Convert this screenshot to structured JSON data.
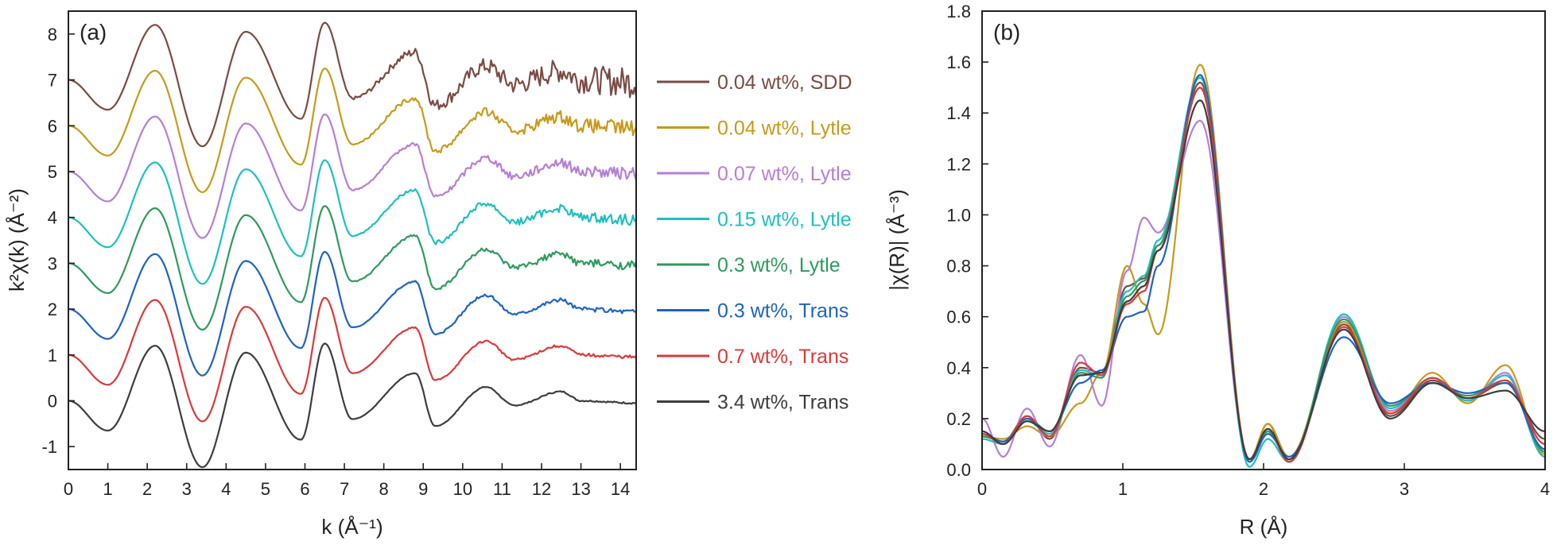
{
  "chart_data": [
    {
      "type": "line",
      "panel_label": "(a)",
      "title": "",
      "xlabel": "k (Å⁻¹)",
      "ylabel": "k²χ(k) (Å⁻²)",
      "xlim": [
        0,
        14.4
      ],
      "ylim": [
        -1.5,
        8.5
      ],
      "xticks": [
        0,
        1,
        2,
        3,
        4,
        5,
        6,
        7,
        8,
        9,
        10,
        11,
        12,
        13,
        14
      ],
      "yticks": [
        -1,
        0,
        1,
        2,
        3,
        4,
        5,
        6,
        7,
        8
      ],
      "legend_position": "right",
      "series_offset_step": 1,
      "series": [
        {
          "name": "0.04 wt%, SDD",
          "color": "#7b4a44",
          "offset": 7,
          "noise": 0.35,
          "x": [
            0,
            1,
            2.2,
            3.4,
            4.5,
            5.9,
            6.5,
            7.2,
            8.8,
            9.3,
            10.6,
            11.3,
            12.5,
            13,
            14.4
          ],
          "y": [
            0,
            -0.65,
            1.2,
            -1.45,
            1.05,
            -0.85,
            1.25,
            -0.4,
            0.6,
            -0.55,
            0.3,
            -0.1,
            0.2,
            0,
            -0.05
          ]
        },
        {
          "name": "0.04 wt%, Lytle",
          "color": "#c79a1b",
          "offset": 6,
          "noise": 0.18,
          "x": [
            0,
            1,
            2.2,
            3.4,
            4.5,
            5.9,
            6.5,
            7.2,
            8.8,
            9.3,
            10.6,
            11.3,
            12.5,
            13,
            14.4
          ],
          "y": [
            0,
            -0.65,
            1.2,
            -1.45,
            1.05,
            -0.85,
            1.25,
            -0.4,
            0.6,
            -0.55,
            0.3,
            -0.1,
            0.2,
            0,
            -0.05
          ]
        },
        {
          "name": "0.07 wt%, Lytle",
          "color": "#b57fd6",
          "offset": 5,
          "noise": 0.14,
          "x": [
            0,
            1,
            2.2,
            3.4,
            4.5,
            5.9,
            6.5,
            7.2,
            8.8,
            9.3,
            10.6,
            11.3,
            12.5,
            13,
            14.4
          ],
          "y": [
            0,
            -0.65,
            1.2,
            -1.45,
            1.05,
            -0.85,
            1.25,
            -0.4,
            0.6,
            -0.55,
            0.3,
            -0.1,
            0.2,
            0,
            -0.05
          ]
        },
        {
          "name": "0.15 wt%, Lytle",
          "color": "#1ebfc0",
          "offset": 4,
          "noise": 0.12,
          "x": [
            0,
            1,
            2.2,
            3.4,
            4.5,
            5.9,
            6.5,
            7.2,
            8.8,
            9.3,
            10.6,
            11.3,
            12.5,
            13,
            14.4
          ],
          "y": [
            0,
            -0.65,
            1.2,
            -1.45,
            1.05,
            -0.85,
            1.25,
            -0.4,
            0.6,
            -0.55,
            0.3,
            -0.1,
            0.2,
            0,
            -0.05
          ]
        },
        {
          "name": "0.3 wt%, Lytle",
          "color": "#2e9a5e",
          "offset": 3,
          "noise": 0.1,
          "x": [
            0,
            1,
            2.2,
            3.4,
            4.5,
            5.9,
            6.5,
            7.2,
            8.8,
            9.3,
            10.6,
            11.3,
            12.5,
            13,
            14.4
          ],
          "y": [
            0,
            -0.65,
            1.2,
            -1.45,
            1.05,
            -0.85,
            1.25,
            -0.4,
            0.6,
            -0.55,
            0.3,
            -0.1,
            0.2,
            0,
            -0.05
          ]
        },
        {
          "name": "0.3 wt%, Trans",
          "color": "#1e63c0",
          "offset": 2,
          "noise": 0.06,
          "x": [
            0,
            1,
            2.2,
            3.4,
            4.5,
            5.9,
            6.5,
            7.2,
            8.8,
            9.3,
            10.6,
            11.3,
            12.5,
            13,
            14.4
          ],
          "y": [
            0,
            -0.65,
            1.2,
            -1.45,
            1.05,
            -0.85,
            1.25,
            -0.4,
            0.6,
            -0.55,
            0.3,
            -0.1,
            0.2,
            0,
            -0.05
          ]
        },
        {
          "name": "0.7 wt%, Trans",
          "color": "#d93a3a",
          "offset": 1,
          "noise": 0.04,
          "x": [
            0,
            1,
            2.2,
            3.4,
            4.5,
            5.9,
            6.5,
            7.2,
            8.8,
            9.3,
            10.6,
            11.3,
            12.5,
            13,
            14.4
          ],
          "y": [
            0,
            -0.65,
            1.2,
            -1.45,
            1.05,
            -0.85,
            1.25,
            -0.4,
            0.6,
            -0.55,
            0.3,
            -0.1,
            0.2,
            0,
            -0.05
          ]
        },
        {
          "name": "3.4 wt%, Trans",
          "color": "#3d3d3d",
          "offset": 0,
          "noise": 0.02,
          "x": [
            0,
            1,
            2.2,
            3.4,
            4.5,
            5.9,
            6.5,
            7.2,
            8.8,
            9.3,
            10.6,
            11.3,
            12.5,
            13,
            14.4
          ],
          "y": [
            0,
            -0.65,
            1.2,
            -1.45,
            1.05,
            -0.85,
            1.25,
            -0.4,
            0.6,
            -0.55,
            0.3,
            -0.1,
            0.2,
            0,
            -0.05
          ]
        }
      ]
    },
    {
      "type": "line",
      "panel_label": "(b)",
      "title": "",
      "xlabel": "R (Å)",
      "ylabel": "|χ(R)| (Å⁻³)",
      "xlim": [
        0,
        4
      ],
      "ylim": [
        0,
        1.8
      ],
      "xticks": [
        0,
        1,
        2,
        3,
        4
      ],
      "yticks": [
        0.0,
        0.2,
        0.4,
        0.6,
        0.8,
        1.0,
        1.2,
        1.4,
        1.6,
        1.8
      ],
      "x": [
        0,
        0.15,
        0.32,
        0.48,
        0.7,
        0.85,
        1.03,
        1.15,
        1.25,
        1.55,
        1.9,
        2.03,
        2.18,
        2.57,
        2.9,
        3.2,
        3.45,
        3.72,
        4.0
      ],
      "series": [
        {
          "name": "0.04 wt%, SDD",
          "color": "#7b4a44",
          "y": [
            0.13,
            0.11,
            0.21,
            0.12,
            0.4,
            0.38,
            0.72,
            0.75,
            0.88,
            1.52,
            0.04,
            0.18,
            0.03,
            0.57,
            0.21,
            0.35,
            0.28,
            0.34,
            0.12
          ]
        },
        {
          "name": "0.04 wt%, Lytle",
          "color": "#c79a1b",
          "y": [
            0.13,
            0.12,
            0.17,
            0.13,
            0.26,
            0.38,
            0.8,
            0.65,
            0.53,
            1.59,
            0.04,
            0.18,
            0.05,
            0.58,
            0.22,
            0.38,
            0.26,
            0.41,
            0.06
          ]
        },
        {
          "name": "0.07 wt%, Lytle",
          "color": "#b57fd6",
          "y": [
            0.2,
            0.05,
            0.24,
            0.09,
            0.45,
            0.25,
            0.78,
            0.99,
            0.93,
            1.37,
            0.03,
            0.15,
            0.03,
            0.6,
            0.23,
            0.36,
            0.27,
            0.38,
            0.05
          ]
        },
        {
          "name": "0.15 wt%, Lytle",
          "color": "#1ebfc0",
          "y": [
            0.12,
            0.1,
            0.19,
            0.14,
            0.39,
            0.37,
            0.7,
            0.76,
            0.9,
            1.54,
            0.01,
            0.12,
            0.03,
            0.61,
            0.24,
            0.36,
            0.27,
            0.37,
            0.05
          ]
        },
        {
          "name": "0.3 wt%, Lytle",
          "color": "#2e9a5e",
          "y": [
            0.13,
            0.11,
            0.2,
            0.13,
            0.38,
            0.36,
            0.68,
            0.74,
            0.88,
            1.5,
            0.03,
            0.15,
            0.04,
            0.59,
            0.25,
            0.34,
            0.29,
            0.35,
            0.07
          ]
        },
        {
          "name": "0.3 wt%, Trans",
          "color": "#1e63c0",
          "y": [
            0.14,
            0.11,
            0.2,
            0.15,
            0.34,
            0.39,
            0.6,
            0.62,
            0.8,
            1.55,
            0.03,
            0.14,
            0.05,
            0.52,
            0.26,
            0.34,
            0.3,
            0.34,
            0.08
          ]
        },
        {
          "name": "0.7 wt%, Trans",
          "color": "#d93a3a",
          "y": [
            0.14,
            0.1,
            0.21,
            0.13,
            0.42,
            0.37,
            0.65,
            0.7,
            0.86,
            1.5,
            0.04,
            0.16,
            0.03,
            0.56,
            0.22,
            0.36,
            0.28,
            0.35,
            0.1
          ]
        },
        {
          "name": "3.4 wt%, Trans",
          "color": "#3d3d3d",
          "y": [
            0.15,
            0.1,
            0.19,
            0.15,
            0.37,
            0.38,
            0.66,
            0.72,
            0.86,
            1.45,
            0.04,
            0.16,
            0.04,
            0.55,
            0.2,
            0.34,
            0.28,
            0.31,
            0.15
          ]
        }
      ]
    }
  ]
}
